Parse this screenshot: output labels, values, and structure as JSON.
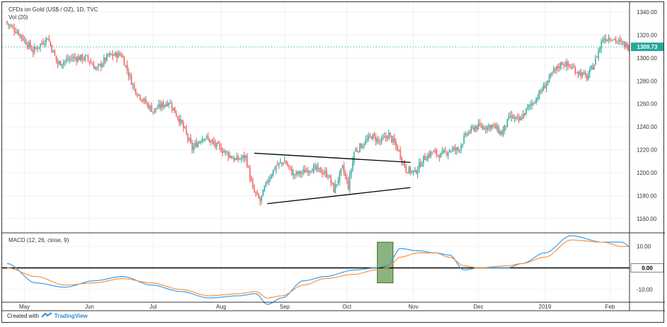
{
  "legend": {
    "symbol": "CFDs on Gold (US$ / OZ), 1D, TVC",
    "volume": "Vol (20)",
    "macd": "MACD (12, 26, close, 9)"
  },
  "footer": {
    "created_with": "Created with",
    "brand": "TradingView"
  },
  "colors": {
    "up": "#26a69a",
    "down": "#ef5350",
    "macd_line": "#2196f3",
    "signal_line": "#ff8a2b",
    "trendline": "#000000",
    "highlight": "#4c8c3a"
  },
  "price_label": "1309.73",
  "macd_zero_label": "0.00",
  "chart_data": [
    {
      "type": "candlestick",
      "title": "CFDs on Gold (US$ / OZ), 1D, TVC",
      "ylim": [
        1150,
        1345
      ],
      "y_ticks": [
        "1160.00",
        "1180.00",
        "1200.00",
        "1220.00",
        "1240.00",
        "1260.00",
        "1280.00",
        "1300.00",
        "1320.00",
        "1340.00"
      ],
      "x_ticks": [
        "May",
        "Jun",
        "Jul",
        "Aug",
        "Sep",
        "Oct",
        "Nov",
        "Dec",
        "2019",
        "Feb"
      ],
      "close_path": [
        [
          0,
          1330
        ],
        [
          8,
          1322
        ],
        [
          18,
          1306
        ],
        [
          28,
          1318
        ],
        [
          35,
          1295
        ],
        [
          45,
          1300
        ],
        [
          55,
          1300
        ],
        [
          62,
          1290
        ],
        [
          70,
          1302
        ],
        [
          79,
          1303
        ],
        [
          88,
          1273
        ],
        [
          95,
          1262
        ],
        [
          101,
          1254
        ],
        [
          106,
          1258
        ],
        [
          112,
          1262
        ],
        [
          121,
          1242
        ],
        [
          128,
          1221
        ],
        [
          136,
          1232
        ],
        [
          144,
          1224
        ],
        [
          152,
          1217
        ],
        [
          158,
          1211
        ],
        [
          165,
          1214
        ],
        [
          170,
          1185
        ],
        [
          175,
          1175
        ],
        [
          180,
          1193
        ],
        [
          186,
          1206
        ],
        [
          192,
          1210
        ],
        [
          198,
          1198
        ],
        [
          204,
          1200
        ],
        [
          210,
          1204
        ],
        [
          216,
          1202
        ],
        [
          222,
          1198
        ],
        [
          226,
          1185
        ],
        [
          232,
          1204
        ],
        [
          236,
          1188
        ],
        [
          240,
          1218
        ],
        [
          246,
          1225
        ],
        [
          252,
          1232
        ],
        [
          258,
          1227
        ],
        [
          264,
          1233
        ],
        [
          270,
          1221
        ],
        [
          276,
          1203
        ],
        [
          282,
          1200
        ],
        [
          288,
          1212
        ],
        [
          294,
          1218
        ],
        [
          300,
          1215
        ],
        [
          306,
          1220
        ],
        [
          312,
          1220
        ],
        [
          318,
          1234
        ],
        [
          324,
          1240
        ],
        [
          330,
          1240
        ],
        [
          336,
          1241
        ],
        [
          342,
          1234
        ],
        [
          348,
          1249
        ],
        [
          354,
          1245
        ],
        [
          360,
          1256
        ],
        [
          366,
          1265
        ],
        [
          372,
          1276
        ],
        [
          378,
          1288
        ],
        [
          384,
          1296
        ],
        [
          390,
          1292
        ],
        [
          396,
          1287
        ],
        [
          401,
          1283
        ],
        [
          406,
          1295
        ],
        [
          412,
          1317
        ],
        [
          418,
          1318
        ],
        [
          424,
          1313
        ],
        [
          430,
          1310
        ]
      ],
      "triangle": {
        "upper": [
          [
            171,
            1217
          ],
          [
            279,
            1209
          ]
        ],
        "lower": [
          [
            180,
            1173
          ],
          [
            279,
            1187
          ]
        ]
      }
    },
    {
      "type": "line",
      "title": "MACD (12, 26, close, 9)",
      "ylim": [
        -15,
        15
      ],
      "y_ticks": [
        "10.00",
        "-10.00"
      ],
      "series": [
        {
          "name": "MACD",
          "points": [
            [
              0,
              2
            ],
            [
              20,
              -7
            ],
            [
              40,
              -9
            ],
            [
              60,
              -6
            ],
            [
              80,
              -4
            ],
            [
              100,
              -8
            ],
            [
              120,
              -11
            ],
            [
              140,
              -14
            ],
            [
              160,
              -13
            ],
            [
              172,
              -12
            ],
            [
              180,
              -17
            ],
            [
              190,
              -14
            ],
            [
              205,
              -6
            ],
            [
              220,
              -4
            ],
            [
              240,
              -1
            ],
            [
              255,
              0
            ],
            [
              263,
              1
            ],
            [
              272,
              9
            ],
            [
              284,
              8
            ],
            [
              296,
              7
            ],
            [
              306,
              6
            ],
            [
              316,
              -1
            ],
            [
              326,
              0
            ],
            [
              346,
              0
            ],
            [
              356,
              2
            ],
            [
              372,
              7
            ],
            [
              390,
              15
            ],
            [
              412,
              12
            ],
            [
              425,
              12
            ],
            [
              431,
              10
            ]
          ]
        },
        {
          "name": "Signal",
          "points": [
            [
              0,
              0
            ],
            [
              20,
              -4
            ],
            [
              40,
              -8
            ],
            [
              60,
              -7
            ],
            [
              80,
              -5
            ],
            [
              100,
              -7
            ],
            [
              120,
              -10
            ],
            [
              140,
              -13
            ],
            [
              160,
              -12
            ],
            [
              172,
              -11
            ],
            [
              180,
              -14
            ],
            [
              190,
              -13
            ],
            [
              205,
              -8
            ],
            [
              220,
              -5
            ],
            [
              240,
              -3
            ],
            [
              255,
              -1
            ],
            [
              263,
              0
            ],
            [
              272,
              5
            ],
            [
              284,
              7
            ],
            [
              296,
              7
            ],
            [
              306,
              5
            ],
            [
              316,
              1
            ],
            [
              326,
              0
            ],
            [
              346,
              1
            ],
            [
              356,
              2
            ],
            [
              372,
              5
            ],
            [
              390,
              13
            ],
            [
              412,
              12
            ],
            [
              425,
              10
            ],
            [
              431,
              10
            ]
          ]
        }
      ],
      "highlight_box": {
        "x": [
          256,
          267
        ],
        "y": [
          -7,
          12
        ]
      }
    }
  ]
}
